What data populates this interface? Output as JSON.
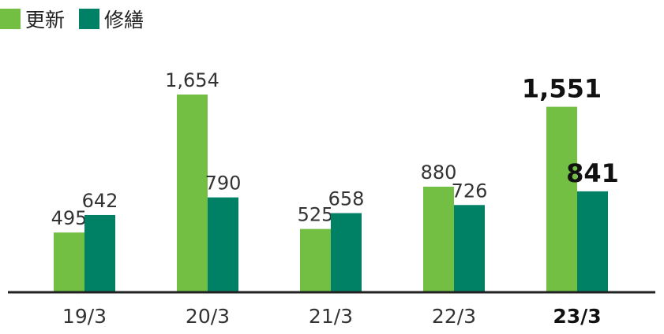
{
  "legend": [
    {
      "label": "更新",
      "color": "#72bf44"
    },
    {
      "label": "修繕",
      "color": "#008065"
    }
  ],
  "chart_data": {
    "type": "bar",
    "title": "",
    "xlabel": "",
    "ylabel": "",
    "categories": [
      "19/3",
      "20/3",
      "21/3",
      "22/3",
      "23/3"
    ],
    "highlight_category": "23/3",
    "series": [
      {
        "name": "更新",
        "color": "#72bf44",
        "values": [
          495,
          1654,
          525,
          880,
          1551
        ],
        "labels": [
          "495",
          "1,654",
          "525",
          "880",
          "1,551"
        ]
      },
      {
        "name": "修繕",
        "color": "#008065",
        "values": [
          642,
          790,
          658,
          726,
          841
        ],
        "labels": [
          "642",
          "790",
          "658",
          "726",
          "841"
        ]
      }
    ],
    "ylim": [
      0,
      1900
    ],
    "grid": false,
    "legend_position": "top-left"
  }
}
